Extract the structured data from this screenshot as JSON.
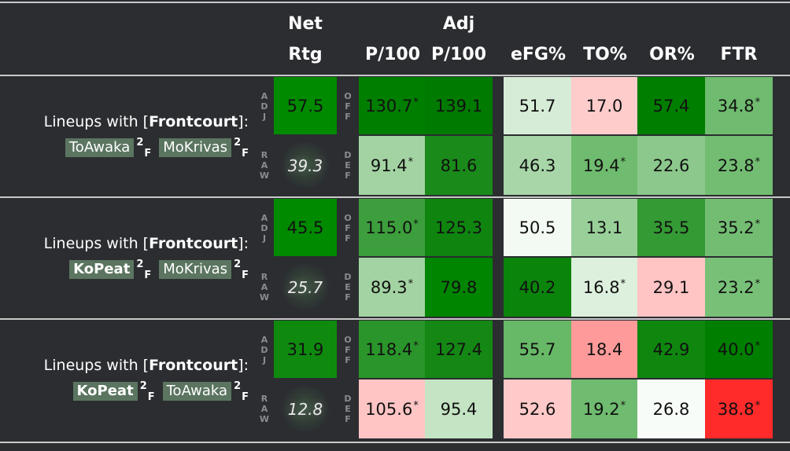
{
  "header": {
    "net_line1": "Net",
    "net_line2": "Rtg",
    "adj_line1": "Adj",
    "p100": "P/100",
    "adj_p100": "P/100",
    "efg": "eFG%",
    "to": "TO%",
    "or": "OR%",
    "ftr": "FTR"
  },
  "labels": {
    "adj": [
      "A",
      "D",
      "J"
    ],
    "raw": [
      "R",
      "A",
      "W"
    ],
    "off": [
      "O",
      "F",
      "F"
    ],
    "def": [
      "D",
      "E",
      "F"
    ]
  },
  "lineups": [
    {
      "title_prefix": "Lineups with [",
      "title_bold": "Frontcourt",
      "title_suffix": "]:",
      "players": [
        {
          "name": "ToAwaka",
          "bold": false,
          "sup": "2",
          "sub": "F"
        },
        {
          "name": "MoKrivas",
          "bold": false,
          "sup": "2",
          "sub": "F"
        }
      ],
      "net_adj": "57.5",
      "net_raw": "39.3",
      "off": {
        "p100": "130.7",
        "p100_star": "*",
        "adj": "139.1",
        "efg": "51.7",
        "to": "17.0",
        "or": "57.4",
        "ftr": "34.8",
        "ftr_star": "*"
      },
      "def": {
        "p100": "91.4",
        "p100_star": "*",
        "adj": "81.6",
        "efg": "46.3",
        "to": "19.4",
        "to_star": "*",
        "or": "22.6",
        "ftr": "23.8",
        "ftr_star": "*"
      }
    },
    {
      "title_prefix": "Lineups with [",
      "title_bold": "Frontcourt",
      "title_suffix": "]:",
      "players": [
        {
          "name": "KoPeat",
          "bold": true,
          "sup": "2",
          "sub": "F"
        },
        {
          "name": "MoKrivas",
          "bold": false,
          "sup": "2",
          "sub": "F"
        }
      ],
      "net_adj": "45.5",
      "net_raw": "25.7",
      "off": {
        "p100": "115.0",
        "p100_star": "*",
        "adj": "125.3",
        "efg": "50.5",
        "to": "13.1",
        "or": "35.5",
        "ftr": "35.2",
        "ftr_star": "*"
      },
      "def": {
        "p100": "89.3",
        "p100_star": "*",
        "adj": "79.8",
        "efg": "40.2",
        "to": "16.8",
        "to_star": "*",
        "or": "29.1",
        "ftr": "23.2",
        "ftr_star": "*"
      }
    },
    {
      "title_prefix": "Lineups with [",
      "title_bold": "Frontcourt",
      "title_suffix": "]:",
      "players": [
        {
          "name": "KoPeat",
          "bold": true,
          "sup": "2",
          "sub": "F"
        },
        {
          "name": "ToAwaka",
          "bold": false,
          "sup": "2",
          "sub": "F"
        }
      ],
      "net_adj": "31.9",
      "net_raw": "12.8",
      "off": {
        "p100": "118.4",
        "p100_star": "*",
        "adj": "127.4",
        "efg": "55.7",
        "to": "18.4",
        "or": "42.9",
        "ftr": "40.0",
        "ftr_star": "*"
      },
      "def": {
        "p100": "105.6",
        "p100_star": "*",
        "adj": "95.4",
        "efg": "52.6",
        "to": "19.2",
        "to_star": "*",
        "or": "26.8",
        "ftr": "38.8",
        "ftr_star": "*"
      }
    }
  ],
  "colors": {
    "bg": "#2b2d31",
    "chip": "#5b7560",
    "cells": [
      {
        "net": "#008a00",
        "off": [
          "#007e00",
          "#007a00",
          "#d6ecd6",
          "#ffcccc",
          "#007e00",
          "#6fbb6f"
        ],
        "def": [
          "#a3d3a3",
          "#1a8a1a",
          "#a8d6a8",
          "#6fbb6f",
          "#8cc88c",
          "#73bd73"
        ]
      },
      {
        "net": "#008a00",
        "off": [
          "#3c9e3c",
          "#0f850f",
          "#f3faf3",
          "#99cf99",
          "#349a34",
          "#73bd73"
        ],
        "def": [
          "#a3d3a3",
          "#008500",
          "#0b840b",
          "#ddf0dd",
          "#ffc4c4",
          "#78c078"
        ]
      },
      {
        "net": "#0f8a0f",
        "off": [
          "#2a952a",
          "#148714",
          "#67b867",
          "#ff9a9a",
          "#0f870f",
          "#007e00"
        ],
        "def": [
          "#ffc4c4",
          "#c4e4c4",
          "#ffc9c9",
          "#6fbb6f",
          "#f8fcf8",
          "#ff2a2a"
        ]
      }
    ]
  }
}
